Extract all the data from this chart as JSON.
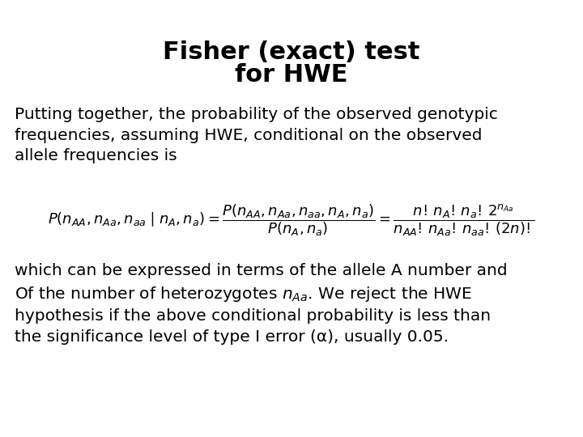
{
  "title_line1": "Fisher (exact) test",
  "title_line2": "for HWE",
  "title_fontsize": 22,
  "body_fontsize": 14.5,
  "formula_fontsize": 13,
  "background_color": "#ffffff",
  "text_color": "#000000",
  "para1": "Putting together, the probability of the observed genotypic\nfrequencies, assuming HWE, conditional on the observed\nallele frequencies is",
  "formula_latex": "$P(n_{AA},n_{Aa},n_{aa}\\mid n_A,n_a)=\\dfrac{P(n_{AA},n_{Aa},n_{aa},n_A,n_a)}{P(n_A,n_a)}=\\dfrac{n!\\,n_A!\\,n_a!\\,2^{n_{Aa}}}{n_{AA}!\\,n_{Aa}!\\,n_{aa}!\\,(2n)!}$",
  "para2": "which can be expressed in terms of the allele A number and\nOf the number of heterozygotes $n_{Aa}$. We reject the HWE\nhypothesis if the above conditional probability is less than\nthe significance level of type I error (α), usually 0.05."
}
